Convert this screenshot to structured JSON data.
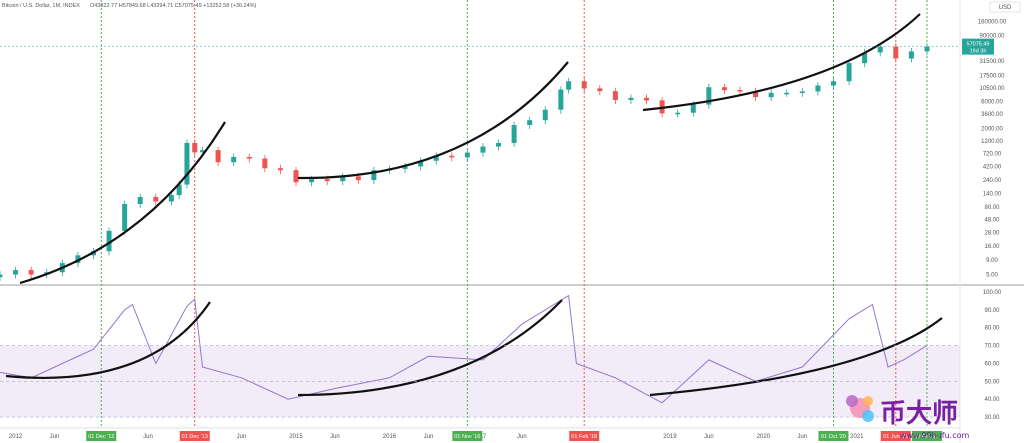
{
  "header": {
    "symbol": "Bitcoin / U.S. Dollar, 1M, INDEX",
    "ohlc": "O43822.77 H57849.68 L43294.71 C57075.49 +13252.58 (+30.24%)"
  },
  "price_axis": {
    "currency": "USD",
    "ticks": [
      "160000.00",
      "90000.00",
      "57075.49",
      "31500.00",
      "17500.00",
      "10500.00",
      "6000.00",
      "3600.00",
      "2000.00",
      "1200.00",
      "720.00",
      "420.00",
      "240.00",
      "140.00",
      "80.00",
      "48.00",
      "28.00",
      "16.00",
      "9.00",
      "5.00"
    ],
    "last_price_label": "57075.49",
    "last_price_sub": "19d 3h"
  },
  "rsi_axis": {
    "ticks": [
      "100.00",
      "90.00",
      "80.00",
      "70.00",
      "60.00",
      "50.00",
      "40.00",
      "30.00"
    ]
  },
  "time_axis": {
    "labels": [
      "2012",
      "Jun",
      "Jun",
      "Jun",
      "2015",
      "Jun",
      "2016",
      "Jun",
      "17",
      "Jun",
      "2019",
      "Jun",
      "2020",
      "Jun",
      "2021"
    ],
    "badges": [
      {
        "text": "01 Dec '12",
        "color": "#4caf50"
      },
      {
        "text": "01 Dec '13",
        "color": "#ef5350"
      },
      {
        "text": "01 Nov '16",
        "color": "#4caf50"
      },
      {
        "text": "01 Feb '18",
        "color": "#ef5350"
      },
      {
        "text": "01 Oct '20",
        "color": "#4caf50"
      },
      {
        "text": "01 Jun '21",
        "color": "#ef5350"
      },
      {
        "text": "01 Oct '21",
        "color": "#4caf50"
      }
    ]
  },
  "watermark": {
    "cn_text": "币大师",
    "url": "www.99hufu.com"
  },
  "colors": {
    "up": "#26a69a",
    "down": "#ef5350",
    "green_line": "#4caf50",
    "red_line": "#ef5350",
    "rsi_line": "#9575cd",
    "rsi_band": "#ede7f6"
  },
  "chart_data": [
    {
      "type": "candlestick",
      "title": "Bitcoin / U.S. Dollar, 1M, INDEX",
      "scale": "log",
      "ylabel": "USD",
      "ylim": [
        4,
        170000
      ],
      "x": [
        "2011-11",
        "2012-01",
        "2012-03",
        "2012-05",
        "2012-07",
        "2012-09",
        "2012-11",
        "2013-01",
        "2013-03",
        "2013-05",
        "2013-07",
        "2013-09",
        "2013-10",
        "2013-11",
        "2013-12",
        "2014-01",
        "2014-03",
        "2014-05",
        "2014-07",
        "2014-09",
        "2014-11",
        "2015-01",
        "2015-03",
        "2015-05",
        "2015-07",
        "2015-09",
        "2015-11",
        "2016-01",
        "2016-03",
        "2016-05",
        "2016-07",
        "2016-09",
        "2016-11",
        "2017-01",
        "2017-03",
        "2017-05",
        "2017-07",
        "2017-09",
        "2017-11",
        "2017-12",
        "2018-02",
        "2018-04",
        "2018-06",
        "2018-08",
        "2018-10",
        "2018-12",
        "2019-02",
        "2019-04",
        "2019-06",
        "2019-08",
        "2019-10",
        "2019-12",
        "2020-02",
        "2020-04",
        "2020-06",
        "2020-08",
        "2020-10",
        "2020-12",
        "2021-02",
        "2021-04",
        "2021-06",
        "2021-08",
        "2021-10"
      ],
      "close": [
        5,
        6,
        5,
        5.5,
        8,
        11,
        13,
        30,
        90,
        120,
        100,
        130,
        200,
        1100,
        750,
        820,
        500,
        620,
        580,
        390,
        360,
        220,
        250,
        230,
        280,
        240,
        360,
        380,
        420,
        530,
        650,
        610,
        740,
        950,
        1100,
        2300,
        2800,
        4300,
        9800,
        13800,
        10300,
        9200,
        6400,
        7000,
        6300,
        3700,
        3800,
        5300,
        10800,
        9600,
        9200,
        7200,
        8600,
        8600,
        9100,
        11600,
        13800,
        29000,
        45000,
        57000,
        35000,
        47000,
        57075.49
      ]
    },
    {
      "type": "line",
      "title": "RSI",
      "ylim": [
        25,
        100
      ],
      "band": [
        30,
        70
      ],
      "x": [
        "2011-11",
        "2012-03",
        "2012-07",
        "2012-11",
        "2013-03",
        "2013-04",
        "2013-07",
        "2013-11",
        "2013-12",
        "2014-01",
        "2014-06",
        "2014-12",
        "2015-06",
        "2016-01",
        "2016-06",
        "2017-01",
        "2017-06",
        "2017-12",
        "2018-01",
        "2018-06",
        "2018-12",
        "2019-06",
        "2019-12",
        "2020-06",
        "2020-12",
        "2021-03",
        "2021-05",
        "2021-07",
        "2021-10"
      ],
      "values": [
        55,
        52,
        60,
        68,
        90,
        93,
        60,
        92,
        96,
        58,
        52,
        40,
        46,
        52,
        64,
        62,
        82,
        98,
        60,
        52,
        38,
        62,
        50,
        58,
        85,
        93,
        58,
        62,
        70
      ]
    }
  ]
}
